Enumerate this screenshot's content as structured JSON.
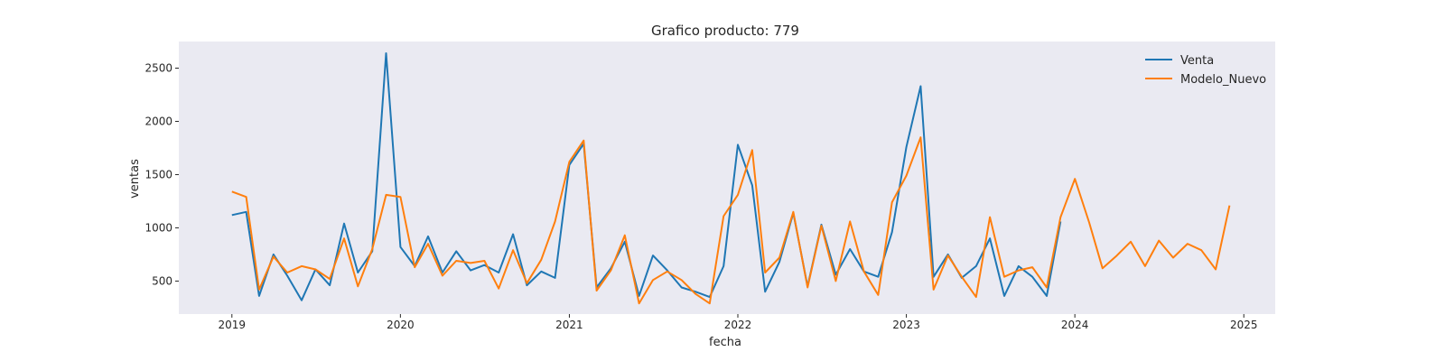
{
  "chart_data": {
    "type": "line",
    "title": "Grafico producto: 779",
    "xlabel": "fecha",
    "ylabel": "ventas",
    "xlim": [
      "2018-09-08",
      "2025-03-10"
    ],
    "ylim": [
      190,
      2750
    ],
    "x_ticks": [
      "2019",
      "2020",
      "2021",
      "2022",
      "2023",
      "2024",
      "2025"
    ],
    "y_ticks": [
      500,
      1000,
      1500,
      2000,
      2500
    ],
    "grid": false,
    "legend_position": "top-right",
    "plot_background": "#eaeaf2",
    "series": [
      {
        "name": "Venta",
        "color": "#1f77b4",
        "points": [
          [
            "2019-01",
            1120
          ],
          [
            "2019-02",
            1150
          ],
          [
            "2019-03",
            360
          ],
          [
            "2019-04",
            750
          ],
          [
            "2019-05",
            550
          ],
          [
            "2019-06",
            320
          ],
          [
            "2019-07",
            610
          ],
          [
            "2019-08",
            460
          ],
          [
            "2019-09",
            1040
          ],
          [
            "2019-10",
            580
          ],
          [
            "2019-11",
            780
          ],
          [
            "2019-12",
            2640
          ],
          [
            "2020-01",
            820
          ],
          [
            "2020-02",
            640
          ],
          [
            "2020-03",
            920
          ],
          [
            "2020-04",
            580
          ],
          [
            "2020-05",
            780
          ],
          [
            "2020-06",
            600
          ],
          [
            "2020-07",
            650
          ],
          [
            "2020-08",
            580
          ],
          [
            "2020-09",
            940
          ],
          [
            "2020-10",
            460
          ],
          [
            "2020-11",
            590
          ],
          [
            "2020-12",
            530
          ],
          [
            "2021-01",
            1590
          ],
          [
            "2021-02",
            1790
          ],
          [
            "2021-03",
            440
          ],
          [
            "2021-04",
            620
          ],
          [
            "2021-05",
            870
          ],
          [
            "2021-06",
            360
          ],
          [
            "2021-07",
            740
          ],
          [
            "2021-08",
            600
          ],
          [
            "2021-09",
            440
          ],
          [
            "2021-10",
            400
          ],
          [
            "2021-11",
            350
          ],
          [
            "2021-12",
            640
          ],
          [
            "2022-01",
            1780
          ],
          [
            "2022-02",
            1400
          ],
          [
            "2022-03",
            400
          ],
          [
            "2022-04",
            680
          ],
          [
            "2022-05",
            1140
          ],
          [
            "2022-06",
            450
          ],
          [
            "2022-07",
            1030
          ],
          [
            "2022-08",
            560
          ],
          [
            "2022-09",
            800
          ],
          [
            "2022-10",
            590
          ],
          [
            "2022-11",
            540
          ],
          [
            "2022-12",
            960
          ],
          [
            "2023-01",
            1760
          ],
          [
            "2023-02",
            2330
          ],
          [
            "2023-03",
            540
          ],
          [
            "2023-04",
            750
          ],
          [
            "2023-05",
            530
          ],
          [
            "2023-06",
            640
          ],
          [
            "2023-07",
            900
          ],
          [
            "2023-08",
            360
          ],
          [
            "2023-09",
            640
          ],
          [
            "2023-10",
            540
          ],
          [
            "2023-11",
            360
          ],
          [
            "2023-12",
            1060
          ]
        ]
      },
      {
        "name": "Modelo_Nuevo",
        "color": "#ff7f0e",
        "points": [
          [
            "2019-01",
            1340
          ],
          [
            "2019-02",
            1290
          ],
          [
            "2019-03",
            420
          ],
          [
            "2019-04",
            730
          ],
          [
            "2019-05",
            580
          ],
          [
            "2019-06",
            640
          ],
          [
            "2019-07",
            610
          ],
          [
            "2019-08",
            520
          ],
          [
            "2019-09",
            900
          ],
          [
            "2019-10",
            450
          ],
          [
            "2019-11",
            800
          ],
          [
            "2019-12",
            1310
          ],
          [
            "2020-01",
            1290
          ],
          [
            "2020-02",
            630
          ],
          [
            "2020-03",
            850
          ],
          [
            "2020-04",
            550
          ],
          [
            "2020-05",
            690
          ],
          [
            "2020-06",
            670
          ],
          [
            "2020-07",
            690
          ],
          [
            "2020-08",
            430
          ],
          [
            "2020-09",
            790
          ],
          [
            "2020-10",
            480
          ],
          [
            "2020-11",
            700
          ],
          [
            "2020-12",
            1060
          ],
          [
            "2021-01",
            1620
          ],
          [
            "2021-02",
            1820
          ],
          [
            "2021-03",
            410
          ],
          [
            "2021-04",
            600
          ],
          [
            "2021-05",
            930
          ],
          [
            "2021-06",
            290
          ],
          [
            "2021-07",
            510
          ],
          [
            "2021-08",
            590
          ],
          [
            "2021-09",
            510
          ],
          [
            "2021-10",
            380
          ],
          [
            "2021-11",
            290
          ],
          [
            "2021-12",
            1110
          ],
          [
            "2022-01",
            1310
          ],
          [
            "2022-02",
            1730
          ],
          [
            "2022-03",
            580
          ],
          [
            "2022-04",
            720
          ],
          [
            "2022-05",
            1150
          ],
          [
            "2022-06",
            440
          ],
          [
            "2022-07",
            1020
          ],
          [
            "2022-08",
            500
          ],
          [
            "2022-09",
            1060
          ],
          [
            "2022-10",
            590
          ],
          [
            "2022-11",
            370
          ],
          [
            "2022-12",
            1240
          ],
          [
            "2023-01",
            1490
          ],
          [
            "2023-02",
            1850
          ],
          [
            "2023-03",
            420
          ],
          [
            "2023-04",
            740
          ],
          [
            "2023-05",
            540
          ],
          [
            "2023-06",
            350
          ],
          [
            "2023-07",
            1100
          ],
          [
            "2023-08",
            540
          ],
          [
            "2023-09",
            600
          ],
          [
            "2023-10",
            630
          ],
          [
            "2023-11",
            440
          ],
          [
            "2023-12",
            1100
          ],
          [
            "2024-01",
            1460
          ],
          [
            "2024-02",
            1050
          ],
          [
            "2024-03",
            620
          ],
          [
            "2024-04",
            740
          ],
          [
            "2024-05",
            870
          ],
          [
            "2024-06",
            640
          ],
          [
            "2024-07",
            880
          ],
          [
            "2024-08",
            720
          ],
          [
            "2024-09",
            850
          ],
          [
            "2024-10",
            790
          ],
          [
            "2024-11",
            610
          ],
          [
            "2024-12",
            1210
          ]
        ]
      }
    ]
  }
}
